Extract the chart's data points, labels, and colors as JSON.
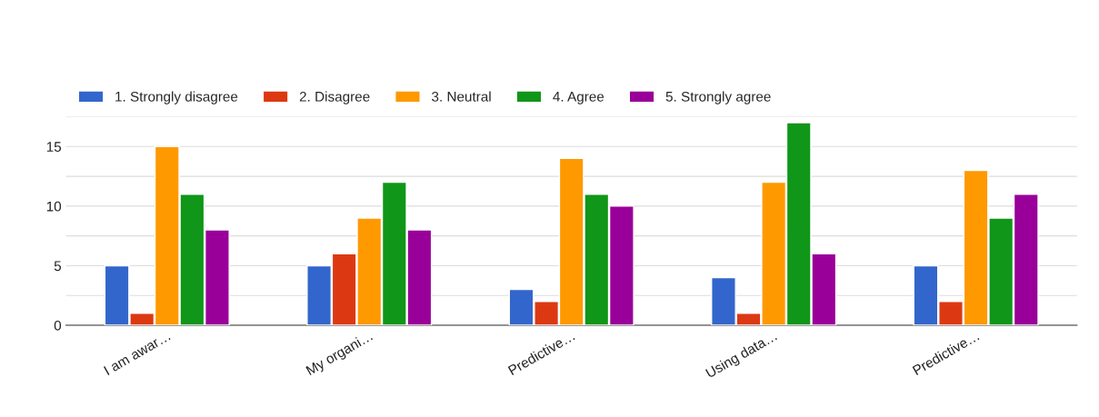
{
  "chart_data": {
    "type": "bar",
    "categories": [
      "I am awar…",
      "My organi…",
      "Predictive…",
      "Using data…",
      "Predictive…"
    ],
    "series": [
      {
        "name": "1. Strongly disagree",
        "color": "#3366cc",
        "values": [
          5,
          5,
          3,
          4,
          5
        ]
      },
      {
        "name": "2. Disagree",
        "color": "#dc3912",
        "values": [
          1,
          6,
          2,
          1,
          2
        ]
      },
      {
        "name": "3. Neutral",
        "color": "#ff9900",
        "values": [
          15,
          9,
          14,
          12,
          13
        ]
      },
      {
        "name": "4. Agree",
        "color": "#109618",
        "values": [
          11,
          12,
          11,
          17,
          9
        ]
      },
      {
        "name": "5. Strongly agree",
        "color": "#990099",
        "values": [
          8,
          8,
          10,
          6,
          11
        ]
      }
    ],
    "ylim": [
      0,
      17.5
    ],
    "yticks": [
      0,
      {
        "value": 2.5,
        "label": null
      },
      5,
      {
        "value": 7.5,
        "label": null
      },
      10,
      {
        "value": 12.5,
        "label": null
      },
      15,
      {
        "value": 17.5,
        "label": null
      }
    ],
    "grid": "y",
    "legend": "top left"
  }
}
